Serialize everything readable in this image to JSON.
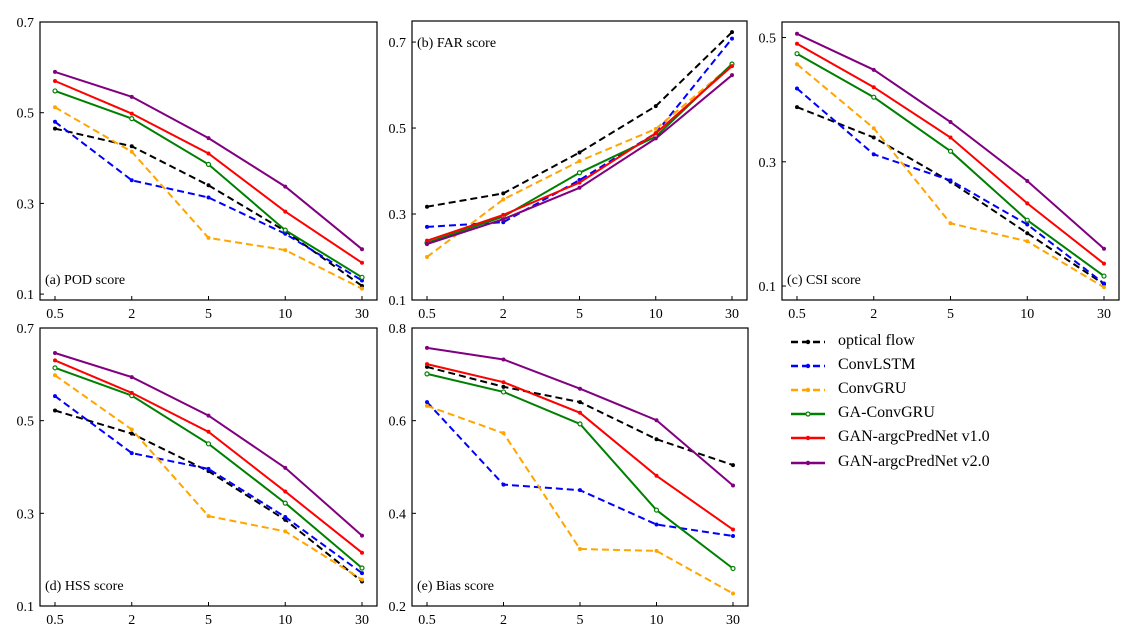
{
  "chart_data": [
    {
      "type": "line",
      "id": "pod",
      "title": "(a) POD score",
      "categories": [
        "0.5",
        "2",
        "5",
        "10",
        "30"
      ],
      "ylim": [
        0.087,
        0.7
      ],
      "yticks": [
        0.1,
        0.3,
        0.5,
        0.7
      ],
      "ytick_labels": [
        "0.1",
        "0.3",
        "0.5",
        "0.7"
      ],
      "xlabel": "",
      "ylabel": "",
      "label_position": "bottom-left",
      "grid": false,
      "series": [
        {
          "name": "optical flow",
          "values": [
            0.465,
            0.426,
            0.34,
            0.239,
            0.118
          ]
        },
        {
          "name": "ConvLSTM",
          "values": [
            0.48,
            0.351,
            0.313,
            0.233,
            0.13
          ]
        },
        {
          "name": "ConvGRU",
          "values": [
            0.512,
            0.414,
            0.224,
            0.197,
            0.112
          ]
        },
        {
          "name": "GA-ConvGRU",
          "values": [
            0.548,
            0.487,
            0.386,
            0.241,
            0.137
          ]
        },
        {
          "name": "GAN-argcPredNet v1.0",
          "values": [
            0.57,
            0.498,
            0.41,
            0.282,
            0.169
          ]
        },
        {
          "name": "GAN-argcPredNet v2.0",
          "values": [
            0.59,
            0.535,
            0.444,
            0.337,
            0.199
          ]
        }
      ]
    },
    {
      "type": "line",
      "id": "far",
      "title": "(b) FAR score",
      "categories": [
        "0.5",
        "2",
        "5",
        "10",
        "30"
      ],
      "ylim": [
        0.1,
        0.749
      ],
      "yticks": [
        0.1,
        0.3,
        0.5,
        0.7
      ],
      "ytick_labels": [
        "0.1",
        "0.3",
        "0.5",
        "0.7"
      ],
      "xlabel": "",
      "ylabel": "",
      "label_position": "top-left",
      "grid": false,
      "series": [
        {
          "name": "optical flow",
          "values": [
            0.317,
            0.348,
            0.443,
            0.551,
            0.723
          ]
        },
        {
          "name": "ConvLSTM",
          "values": [
            0.27,
            0.281,
            0.379,
            0.488,
            0.708
          ]
        },
        {
          "name": "ConvGRU",
          "values": [
            0.2,
            0.334,
            0.423,
            0.498,
            0.647
          ]
        },
        {
          "name": "GA-ConvGRU",
          "values": [
            0.233,
            0.294,
            0.396,
            0.48,
            0.649
          ]
        },
        {
          "name": "GAN-argcPredNet v1.0",
          "values": [
            0.238,
            0.298,
            0.373,
            0.488,
            0.644
          ]
        },
        {
          "name": "GAN-argcPredNet v2.0",
          "values": [
            0.23,
            0.288,
            0.361,
            0.476,
            0.623
          ]
        }
      ]
    },
    {
      "type": "line",
      "id": "csi",
      "title": "(c) CSI score",
      "categories": [
        "0.5",
        "2",
        "5",
        "10",
        "30"
      ],
      "ylim": [
        0.0775,
        0.525
      ],
      "yticks": [
        0.1,
        0.3,
        0.5
      ],
      "ytick_labels": [
        "0.1",
        "0.3",
        "0.5"
      ],
      "xlabel": "",
      "ylabel": "",
      "label_position": "bottom-left",
      "grid": false,
      "series": [
        {
          "name": "optical flow",
          "values": [
            0.388,
            0.339,
            0.268,
            0.185,
            0.103
          ]
        },
        {
          "name": "ConvLSTM",
          "values": [
            0.418,
            0.312,
            0.27,
            0.199,
            0.104
          ]
        },
        {
          "name": "ConvGRU",
          "values": [
            0.457,
            0.354,
            0.201,
            0.172,
            0.098
          ]
        },
        {
          "name": "GA-ConvGRU",
          "values": [
            0.474,
            0.404,
            0.317,
            0.206,
            0.116
          ]
        },
        {
          "name": "GAN-argcPredNet v1.0",
          "values": [
            0.49,
            0.42,
            0.339,
            0.233,
            0.136
          ]
        },
        {
          "name": "GAN-argcPredNet v2.0",
          "values": [
            0.506,
            0.448,
            0.364,
            0.269,
            0.16
          ]
        }
      ]
    },
    {
      "type": "line",
      "id": "hss",
      "title": "(d) HSS score",
      "categories": [
        "0.5",
        "2",
        "5",
        "10",
        "30"
      ],
      "ylim": [
        0.1,
        0.7
      ],
      "yticks": [
        0.1,
        0.3,
        0.5,
        0.7
      ],
      "ytick_labels": [
        "0.1",
        "0.3",
        "0.5",
        "0.7"
      ],
      "xlabel": "",
      "ylabel": "",
      "label_position": "bottom-left",
      "grid": false,
      "series": [
        {
          "name": "optical flow",
          "values": [
            0.522,
            0.472,
            0.391,
            0.286,
            0.153
          ]
        },
        {
          "name": "ConvLSTM",
          "values": [
            0.553,
            0.43,
            0.396,
            0.292,
            0.171
          ]
        },
        {
          "name": "ConvGRU",
          "values": [
            0.598,
            0.481,
            0.294,
            0.261,
            0.157
          ]
        },
        {
          "name": "GA-ConvGRU",
          "values": [
            0.614,
            0.554,
            0.45,
            0.322,
            0.182
          ]
        },
        {
          "name": "GAN-argcPredNet v1.0",
          "values": [
            0.63,
            0.56,
            0.476,
            0.347,
            0.215
          ]
        },
        {
          "name": "GAN-argcPredNet v2.0",
          "values": [
            0.646,
            0.594,
            0.511,
            0.398,
            0.252
          ]
        }
      ]
    },
    {
      "type": "line",
      "id": "bias",
      "title": "(e) Bias score",
      "categories": [
        "0.5",
        "2",
        "5",
        "10",
        "30"
      ],
      "ylim": [
        0.2,
        0.8
      ],
      "yticks": [
        0.2,
        0.4,
        0.6,
        0.8
      ],
      "ytick_labels": [
        "0.2",
        "0.4",
        "0.6",
        "0.8"
      ],
      "xlabel": "",
      "ylabel": "",
      "label_position": "bottom-left",
      "grid": false,
      "series": [
        {
          "name": "optical flow",
          "values": [
            0.716,
            0.673,
            0.64,
            0.56,
            0.504
          ]
        },
        {
          "name": "ConvLSTM",
          "values": [
            0.64,
            0.462,
            0.45,
            0.376,
            0.351
          ]
        },
        {
          "name": "ConvGRU",
          "values": [
            0.632,
            0.573,
            0.323,
            0.319,
            0.227
          ]
        },
        {
          "name": "GA-ConvGRU",
          "values": [
            0.701,
            0.662,
            0.593,
            0.407,
            0.281
          ]
        },
        {
          "name": "GAN-argcPredNet v1.0",
          "values": [
            0.722,
            0.683,
            0.617,
            0.481,
            0.365
          ]
        },
        {
          "name": "GAN-argcPredNet v2.0",
          "values": [
            0.757,
            0.732,
            0.669,
            0.601,
            0.46
          ]
        }
      ]
    }
  ],
  "legend": {
    "position": "right of bottom row",
    "items": [
      {
        "name": "optical flow",
        "color": "#000000",
        "style": "dashed",
        "marker": "dot"
      },
      {
        "name": "ConvLSTM",
        "color": "#0000ff",
        "style": "dashed",
        "marker": "dot"
      },
      {
        "name": "ConvGRU",
        "color": "#ffa500",
        "style": "dashed",
        "marker": "dot"
      },
      {
        "name": "GA-ConvGRU",
        "color": "#008000",
        "style": "solid",
        "marker": "hollow-circle"
      },
      {
        "name": "GAN-argcPredNet v1.0",
        "color": "#ff0000",
        "style": "solid",
        "marker": "dot"
      },
      {
        "name": "GAN-argcPredNet v2.0",
        "color": "#800080",
        "style": "solid",
        "marker": "dot"
      }
    ]
  }
}
